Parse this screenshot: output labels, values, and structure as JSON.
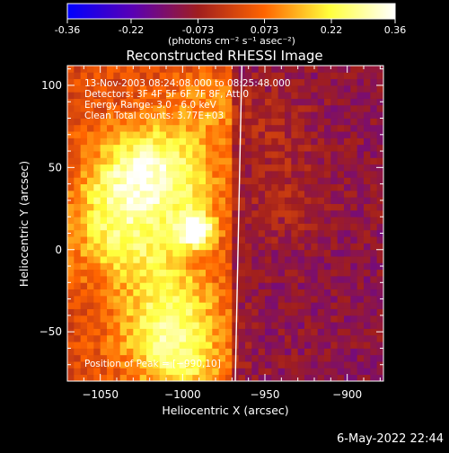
{
  "colorbar": {
    "tick_labels": [
      "-0.36",
      "-0.22",
      "-0.073",
      "0.073",
      "0.22",
      "0.36"
    ],
    "tick_values": [
      -0.36,
      -0.22,
      -0.073,
      0.073,
      0.22,
      0.36
    ],
    "range": [
      -0.36,
      0.36
    ],
    "unit_label": "(photons cm⁻² s⁻¹ asec⁻²)",
    "colors": [
      "#0000ff",
      "#5a00b4",
      "#a01e1e",
      "#ff6400",
      "#ffff3c",
      "#ffffff"
    ]
  },
  "chart_data": {
    "type": "heatmap",
    "title": "Reconstructed RHESSI Image",
    "xlabel": "Heliocentric X (arcsec)",
    "ylabel": "Heliocentric Y (arcsec)",
    "xlim": [
      -1070,
      -878
    ],
    "ylim": [
      -80,
      112
    ],
    "x_ticks": [
      -1050,
      -1000,
      -950,
      -900
    ],
    "y_ticks": [
      -50,
      0,
      50,
      100
    ],
    "x_tick_labels": [
      "−1050",
      "−1000",
      "−950",
      "−900"
    ],
    "y_tick_labels": [
      "−50",
      "0",
      "50",
      "100"
    ],
    "annotations": [
      "13-Nov-2003 08:24:08.000 to 08:25:48.000",
      "Detectors: 3F 4F 5F 6F 7F 8F, Att 0",
      "Energy Range: 3.0 - 6.0 keV",
      "Clean     Total counts: 3.77E+03"
    ],
    "peak_label": "Position of Peak = [−990,10]",
    "peak": [
      -990,
      10
    ],
    "limb_x_at_bottom": -968,
    "limb_x_at_top": -964,
    "sources": [
      {
        "x": -992,
        "y": 12,
        "peak": 0.36
      },
      {
        "x": -1030,
        "y": 50,
        "peak": 0.16
      },
      {
        "x": -1040,
        "y": 30,
        "peak": 0.14
      },
      {
        "x": -1010,
        "y": 55,
        "peak": 0.12
      },
      {
        "x": -1000,
        "y": 30,
        "peak": 0.13
      },
      {
        "x": -1045,
        "y": 5,
        "peak": 0.11
      },
      {
        "x": -1020,
        "y": -5,
        "peak": 0.12
      },
      {
        "x": -1000,
        "y": -35,
        "peak": 0.14
      },
      {
        "x": -1020,
        "y": -50,
        "peak": 0.12
      },
      {
        "x": -1000,
        "y": -70,
        "peak": 0.17
      },
      {
        "x": -985,
        "y": 85,
        "peak": 0.08
      },
      {
        "x": -935,
        "y": 30,
        "peak": 0.06
      },
      {
        "x": -945,
        "y": 75,
        "peak": 0.05
      }
    ]
  },
  "footer": {
    "date": "6-May-2022 22:44"
  }
}
